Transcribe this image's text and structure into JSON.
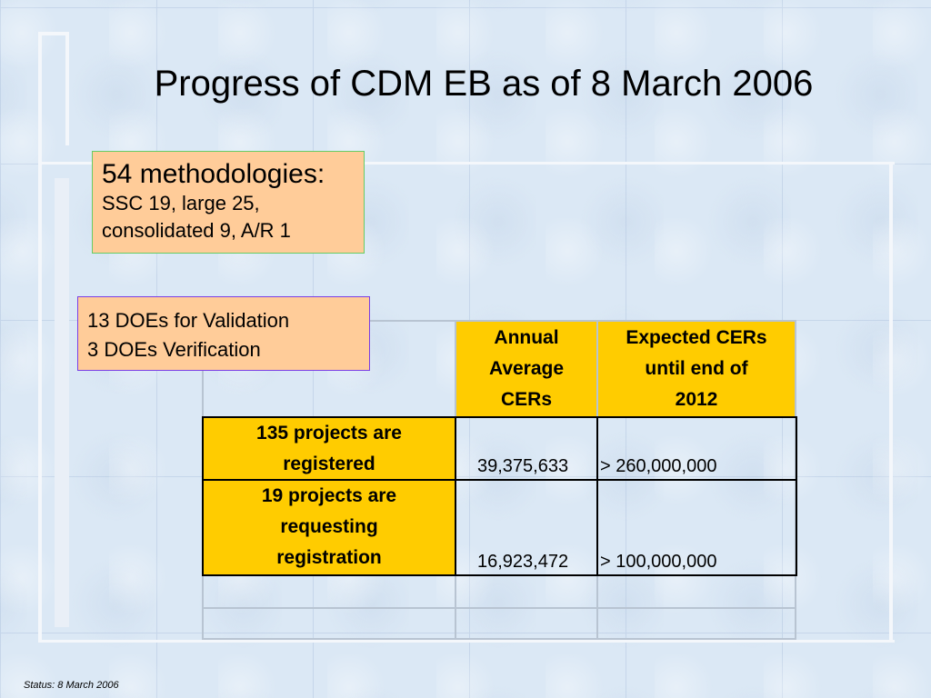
{
  "slide": {
    "title": "Progress of CDM EB as of 8 March 2006",
    "methodologies": {
      "heading": "54 methodologies:",
      "line1": "SSC 19, large 25,",
      "line2": "consolidated 9,  A/R 1"
    },
    "does": {
      "line1": "13 DOEs for Validation",
      "line2": "3 DOEs Verification"
    },
    "table": {
      "headers": {
        "annual": [
          "Annual",
          "Average",
          "CERs"
        ],
        "expected": [
          "Expected CERs",
          "until end of",
          "2012"
        ]
      },
      "rows": [
        {
          "label": [
            "135 projects are",
            "registered"
          ],
          "annual": "39,375,633",
          "expected": "> 260,000,000"
        },
        {
          "label": [
            "19 projects are",
            "requesting",
            "registration"
          ],
          "annual": "16,923,472",
          "expected": "> 100,000,000"
        }
      ]
    },
    "status": "Status: 8 March 2006"
  }
}
